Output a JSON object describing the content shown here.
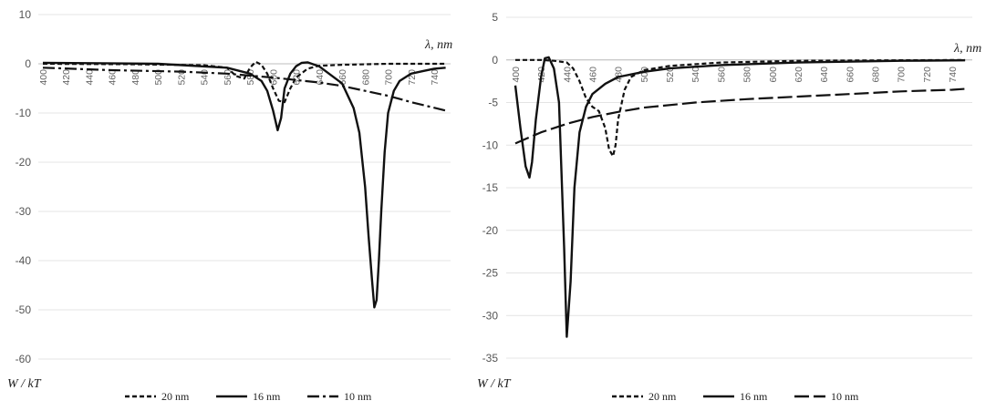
{
  "chart_data": [
    {
      "type": "line",
      "title": "",
      "xlabel": "λ, nm",
      "ylabel": "W / kT",
      "xlim": [
        400,
        740
      ],
      "ylim": [
        -60,
        10
      ],
      "y_ticks": [
        10,
        0,
        -10,
        -20,
        -30,
        -40,
        -50,
        -60
      ],
      "x_ticks": [
        400,
        420,
        440,
        460,
        480,
        500,
        520,
        540,
        560,
        580,
        600,
        620,
        640,
        660,
        680,
        700,
        720,
        740
      ],
      "grid": "horizontal",
      "legend_position": "bottom",
      "series": [
        {
          "name": "20 nm",
          "dash": "short-dash",
          "x": [
            400,
            480,
            540,
            560,
            568,
            575,
            580,
            585,
            590,
            595,
            600,
            605,
            610,
            615,
            620,
            630,
            640,
            660,
            700,
            750
          ],
          "y": [
            0,
            -0.1,
            -0.3,
            -0.8,
            -2.5,
            -3.0,
            -0.8,
            0.4,
            -0.2,
            -2.0,
            -5.0,
            -7.5,
            -7.8,
            -5.0,
            -2.8,
            -1.0,
            -0.4,
            -0.2,
            0,
            0
          ]
        },
        {
          "name": "16 nm",
          "dash": "solid",
          "x": [
            400,
            500,
            560,
            580,
            590,
            595,
            600,
            604,
            607,
            610,
            615,
            620,
            625,
            630,
            640,
            660,
            670,
            675,
            680,
            683,
            686,
            688,
            690,
            692,
            694,
            697,
            700,
            705,
            710,
            720,
            730,
            740,
            750
          ],
          "y": [
            0.2,
            0,
            -0.8,
            -2.0,
            -3.5,
            -5.5,
            -9.5,
            -13.5,
            -11.0,
            -5.0,
            -2.0,
            -0.5,
            0.2,
            0.3,
            -0.5,
            -4.0,
            -9.0,
            -14.0,
            -25.0,
            -35.0,
            -44.0,
            -49.5,
            -48.0,
            -40.0,
            -30.0,
            -18.0,
            -10.0,
            -5.5,
            -3.5,
            -2.0,
            -1.5,
            -1.0,
            -0.8
          ]
        },
        {
          "name": "10 nm",
          "dash": "dash-dot",
          "x": [
            400,
            460,
            520,
            560,
            580,
            600,
            620,
            640,
            660,
            680,
            700,
            720,
            750
          ],
          "y": [
            -0.8,
            -1.3,
            -1.6,
            -2.0,
            -2.4,
            -2.8,
            -3.3,
            -3.8,
            -4.5,
            -5.5,
            -6.5,
            -7.8,
            -9.5
          ]
        }
      ]
    },
    {
      "type": "line",
      "title": "",
      "xlabel": "λ, nm",
      "ylabel": "W / kT",
      "xlim": [
        400,
        740
      ],
      "ylim": [
        -35,
        5
      ],
      "y_ticks": [
        5,
        0,
        -5,
        -10,
        -15,
        -20,
        -25,
        -30,
        -35
      ],
      "x_ticks": [
        400,
        420,
        440,
        460,
        480,
        500,
        520,
        540,
        560,
        580,
        600,
        620,
        640,
        660,
        680,
        700,
        720,
        740
      ],
      "grid": "horizontal",
      "legend_position": "bottom",
      "series": [
        {
          "name": "20 nm",
          "dash": "short-dash",
          "x": [
            400,
            420,
            430,
            440,
            445,
            450,
            455,
            460,
            465,
            470,
            473,
            476,
            478,
            480,
            485,
            490,
            500,
            520,
            560,
            620,
            750
          ],
          "y": [
            0,
            0,
            -0.1,
            -0.3,
            -1.0,
            -2.5,
            -4.5,
            -5.5,
            -6.0,
            -8.0,
            -10.5,
            -11.3,
            -10.0,
            -7.0,
            -3.5,
            -2.0,
            -1.2,
            -0.7,
            -0.3,
            -0.1,
            0
          ]
        },
        {
          "name": "16 nm",
          "dash": "solid",
          "x": [
            400,
            404,
            408,
            411,
            413,
            416,
            420,
            423,
            426,
            430,
            434,
            438,
            440,
            443,
            446,
            450,
            455,
            460,
            470,
            480,
            500,
            520,
            560,
            620,
            700,
            750
          ],
          "y": [
            -3.0,
            -8.0,
            -12.5,
            -13.8,
            -12.0,
            -7.0,
            -2.0,
            0.2,
            0.3,
            -1.0,
            -5.0,
            -22.0,
            -32.5,
            -26.0,
            -15.0,
            -8.5,
            -5.5,
            -4.0,
            -2.8,
            -2.0,
            -1.4,
            -1.0,
            -0.6,
            -0.3,
            -0.1,
            -0.05
          ]
        },
        {
          "name": "10 nm",
          "dash": "long-dash",
          "x": [
            400,
            420,
            440,
            460,
            480,
            500,
            540,
            580,
            620,
            660,
            700,
            740,
            750
          ],
          "y": [
            -9.8,
            -8.5,
            -7.5,
            -6.7,
            -6.1,
            -5.6,
            -5.0,
            -4.6,
            -4.3,
            -4.0,
            -3.7,
            -3.5,
            -3.4
          ]
        }
      ]
    }
  ]
}
